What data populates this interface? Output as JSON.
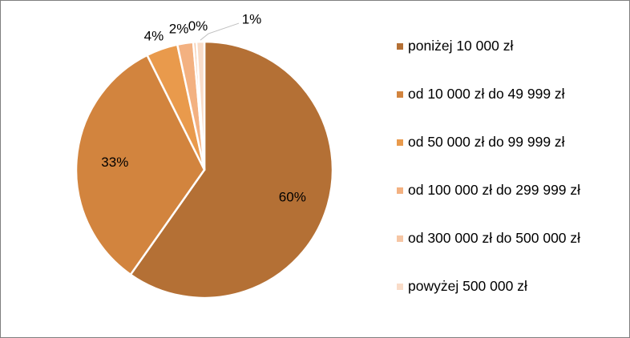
{
  "chart_data": {
    "type": "pie",
    "title": "",
    "slices": [
      {
        "label": "poniżej 10 000 zł",
        "value": 60,
        "display": "60%",
        "color": "#b47035"
      },
      {
        "label": "od 10 000 zł do 49 999 zł",
        "value": 33,
        "display": "33%",
        "color": "#d2843e"
      },
      {
        "label": "od 50 000 zł do 99 999 zł",
        "value": 4,
        "display": "4%",
        "color": "#e99a4c"
      },
      {
        "label": "od 100 000 zł do 299 999 zł",
        "value": 2,
        "display": "2%",
        "color": "#f3b181"
      },
      {
        "label": "od 300 000 zł do 500 000 zł",
        "value": 0.4,
        "display": "0%",
        "color": "#f6c6a4"
      },
      {
        "label": "powyżej 500 000 zł",
        "value": 1,
        "display": "1%",
        "color": "#f9dcc8"
      }
    ],
    "legend_position": "right"
  }
}
